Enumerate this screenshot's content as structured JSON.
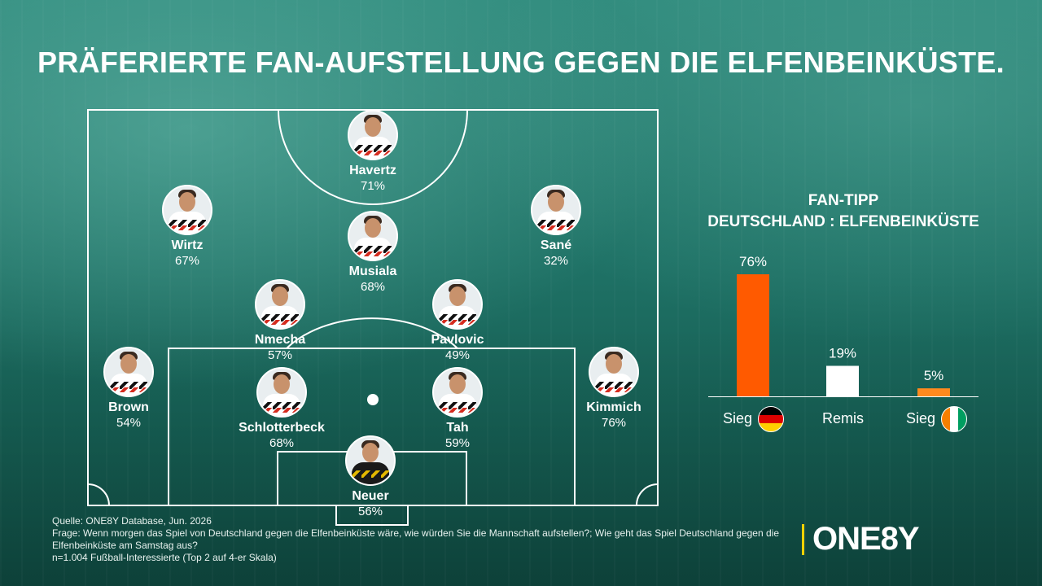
{
  "title": "PRÄFERIERTE FAN-AUFSTELLUNG GEGEN DIE ELFENBEINKÜSTE.",
  "players": [
    {
      "name": "Havertz",
      "pct": "71%"
    },
    {
      "name": "Wirtz",
      "pct": "67%"
    },
    {
      "name": "Musiala",
      "pct": "68%"
    },
    {
      "name": "Sané",
      "pct": "32%"
    },
    {
      "name": "Nmecha",
      "pct": "57%"
    },
    {
      "name": "Pavlovic",
      "pct": "49%"
    },
    {
      "name": "Brown",
      "pct": "54%"
    },
    {
      "name": "Schlotterbeck",
      "pct": "68%"
    },
    {
      "name": "Tah",
      "pct": "59%"
    },
    {
      "name": "Kimmich",
      "pct": "76%"
    },
    {
      "name": "Neuer",
      "pct": "56%"
    }
  ],
  "tipp": {
    "title_line1": "FAN-TIPP",
    "title_line2": "DEUTSCHLAND : ELFENBEINKÜSTE"
  },
  "chart_data": {
    "type": "bar",
    "categories": [
      "Sieg",
      "Remis",
      "Sieg"
    ],
    "values": [
      76,
      19,
      5
    ],
    "value_labels": [
      "76%",
      "19%",
      "5%"
    ],
    "category_flags": [
      "germany-flag-icon",
      "",
      "ivory-coast-flag-icon"
    ],
    "colors": [
      "#ff5a00",
      "#ffffff",
      "#ff8a1e"
    ],
    "ylim": [
      0,
      100
    ]
  },
  "footer": {
    "source": "Quelle: ONE8Y Database, Jun. 2026",
    "question": "Frage: Wenn morgen das Spiel von Deutschland gegen die Elfenbeinküste wäre, wie würden Sie die Mannschaft aufstellen?; Wie geht das Spiel Deutschland gegen die Elfenbeinküste am Samstag aus?",
    "sample": "n=1.004 Fußball-Interessierte (Top 2 auf 4-er Skala)"
  },
  "logo": "ONE8Y",
  "colors": {
    "accent": "#ff5a00",
    "logo_bar": "#ffd200",
    "background": "#1f7266"
  }
}
